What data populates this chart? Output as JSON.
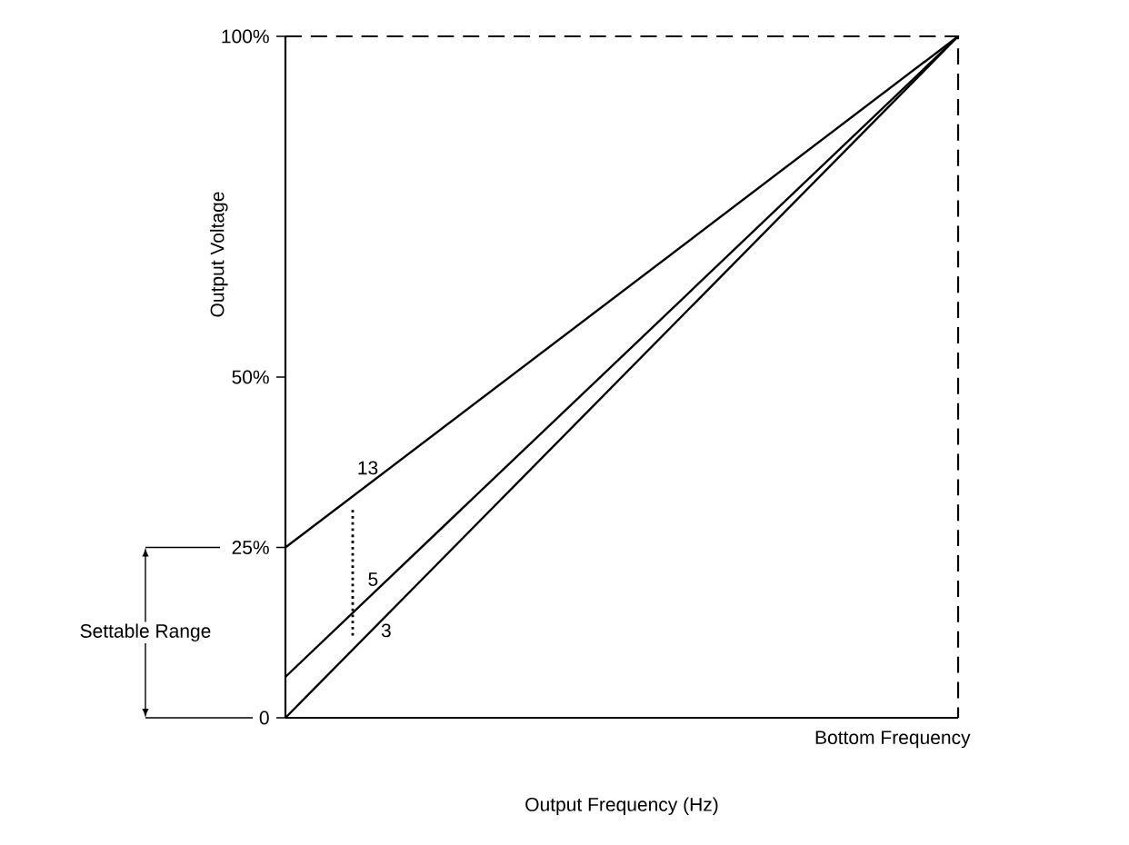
{
  "chart_data": {
    "type": "line",
    "xlabel": "Output Frequency (Hz)",
    "ylabel": "Output Voltage",
    "categories": [
      null,
      null
    ],
    "ylim": [
      0,
      100
    ],
    "yticks": [
      {
        "value": 0,
        "label": "0"
      },
      {
        "value": 25,
        "label": "25%"
      },
      {
        "value": 50,
        "label": "50%"
      },
      {
        "value": 100,
        "label": "100%"
      }
    ],
    "series": [
      {
        "name": "13",
        "color": "#000000",
        "values": [
          25,
          100
        ]
      },
      {
        "name": "5",
        "color": "#000000",
        "values": [
          6,
          100
        ]
      },
      {
        "name": "3",
        "color": "#000000",
        "values": [
          0,
          100
        ]
      }
    ],
    "ref_lines": [
      {
        "axis": "y",
        "value": 100,
        "line_style": "dashed",
        "color": "#000000"
      }
    ],
    "annotations": [
      "Settable Range",
      "Bottom Frequency"
    ]
  }
}
